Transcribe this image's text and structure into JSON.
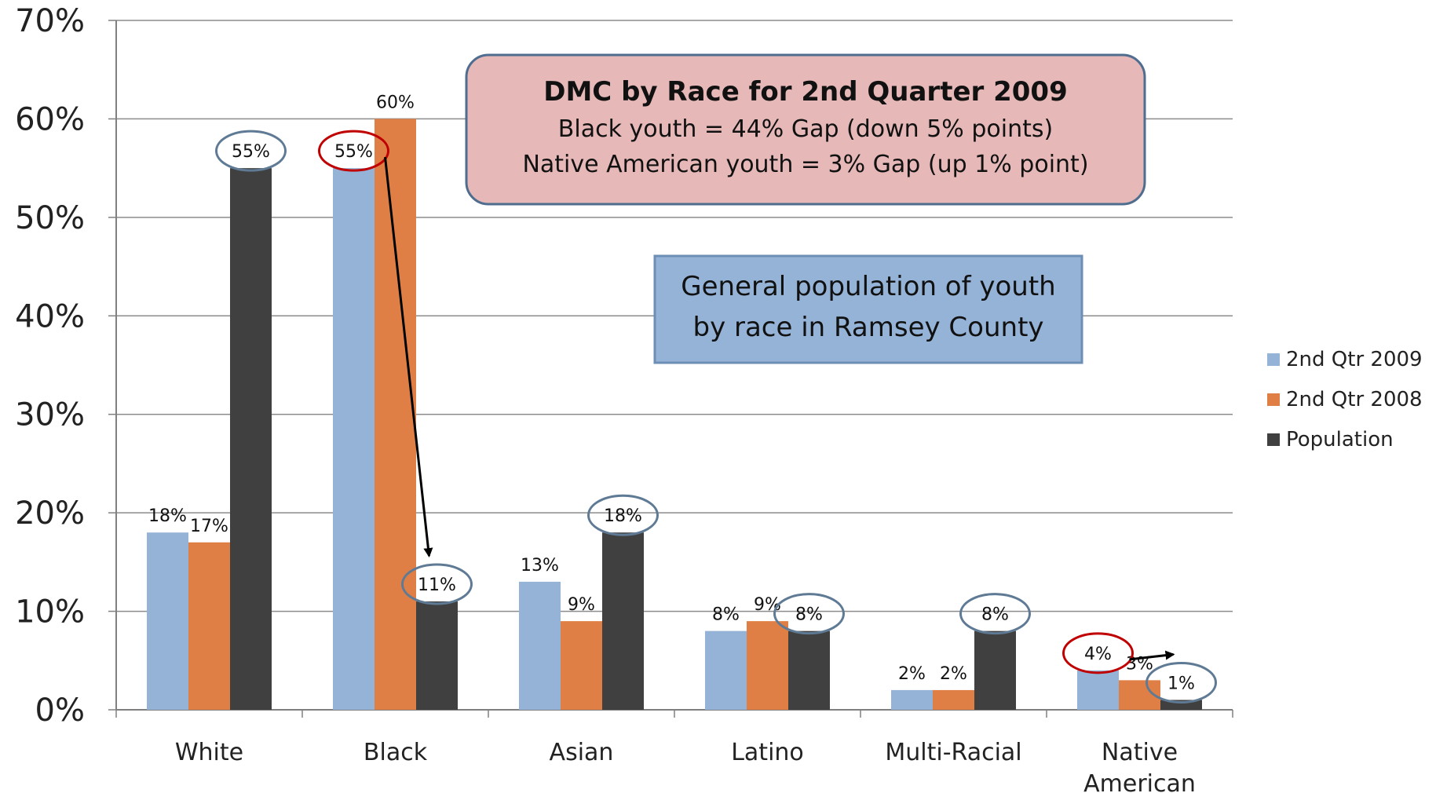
{
  "chart_data": {
    "type": "bar",
    "categories": [
      "White",
      "Black",
      "Asian",
      "Latino",
      "Multi-Racial",
      "Native American"
    ],
    "category_lines": [
      [
        "White"
      ],
      [
        "Black"
      ],
      [
        "Asian"
      ],
      [
        "Latino"
      ],
      [
        "Multi-Racial"
      ],
      [
        "Native",
        "American"
      ]
    ],
    "series": [
      {
        "name": "2nd Qtr 2009",
        "values": [
          18,
          55,
          13,
          8,
          2,
          4
        ],
        "color": "#95b3d7"
      },
      {
        "name": "2nd Qtr 2008",
        "values": [
          17,
          60,
          9,
          9,
          2,
          3
        ],
        "color": "#e07f45"
      },
      {
        "name": "Population",
        "values": [
          55,
          11,
          18,
          8,
          8,
          1
        ],
        "color": "#404040"
      }
    ],
    "data_labels": [
      [
        "18%",
        "55%",
        "13%",
        "8%",
        "2%",
        "4%"
      ],
      [
        "17%",
        "60%",
        "9%",
        "9%",
        "2%",
        "3%"
      ],
      [
        "55%",
        "11%",
        "18%",
        "8%",
        "8%",
        "1%"
      ]
    ],
    "ylim": [
      0,
      70
    ],
    "yticks": [
      0,
      10,
      20,
      30,
      40,
      50,
      60,
      70
    ],
    "ytick_labels": [
      "0%",
      "10%",
      "20%",
      "30%",
      "40%",
      "50%",
      "60%",
      "70%"
    ],
    "grid": true,
    "legend_position": "right",
    "title": "",
    "xlabel": "",
    "ylabel": "",
    "highlight_red": [
      [
        0,
        1
      ],
      [
        0,
        5
      ]
    ],
    "highlight_blue": [
      [
        2,
        0
      ],
      [
        2,
        1
      ],
      [
        2,
        2
      ],
      [
        2,
        3
      ],
      [
        2,
        4
      ],
      [
        2,
        5
      ]
    ],
    "arrows": [
      {
        "from": [
          0,
          1
        ],
        "to": [
          2,
          1
        ]
      },
      {
        "from": [
          0,
          5
        ],
        "to": [
          2,
          5
        ]
      }
    ]
  },
  "callout_box": {
    "title": "DMC  by Race for 2nd Quarter 2009",
    "line1": "Black youth  = 44% Gap  (down 5% points)",
    "line2": "Native American youth  = 3% Gap  (up 1% point)",
    "fill": "#e6b9b8",
    "border": "#4f6d8f"
  },
  "population_box": {
    "line1": "General population of youth",
    "line2": "by race in Ramsey County",
    "fill": "#95b3d7",
    "border": "#6d8fb5"
  },
  "colors": {
    "grid": "#8c8c8c",
    "axis": "#808080",
    "ellipse_red": "#c00000",
    "ellipse_blue": "#5f7a94",
    "arrow": "#000000"
  }
}
